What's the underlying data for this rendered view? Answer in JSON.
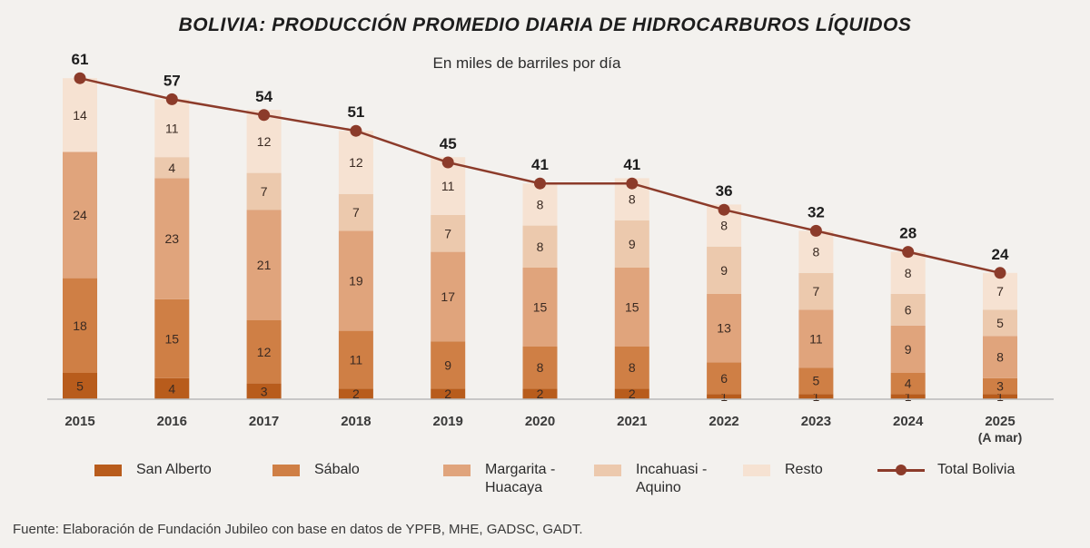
{
  "title": "BOLIVIA: PRODUCCIÓN PROMEDIO DIARIA DE HIDROCARBUROS LÍQUIDOS",
  "subtitle": "En miles de barriles por día",
  "source": "Fuente: Elaboración de Fundación Jubileo con base en datos de YPFB, MHE, GADSC, GADT.",
  "chart_data": {
    "type": "bar",
    "stacked": true,
    "categories": [
      "2015",
      "2016",
      "2017",
      "2018",
      "2019",
      "2020",
      "2021",
      "2022",
      "2023",
      "2024",
      "2025"
    ],
    "category_sublabels": [
      "",
      "",
      "",
      "",
      "",
      "",
      "",
      "",
      "",
      "",
      "(A mar)"
    ],
    "ylim": [
      0,
      64
    ],
    "grid": false,
    "legend_position": "bottom",
    "series": [
      {
        "name": "San Alberto",
        "color": "#b85c1c",
        "values": [
          5,
          4,
          3,
          2,
          2,
          2,
          2,
          1,
          1,
          1,
          1
        ]
      },
      {
        "name": "Sábalo",
        "color": "#cf7f45",
        "values": [
          18,
          15,
          12,
          11,
          9,
          8,
          8,
          6,
          5,
          4,
          3
        ]
      },
      {
        "name": "Margarita - Huacaya",
        "color": "#e0a47c",
        "values": [
          24,
          23,
          21,
          19,
          17,
          15,
          15,
          13,
          11,
          9,
          8
        ]
      },
      {
        "name": "Incahuasi - Aquino",
        "color": "#ecc9ad",
        "values": [
          0,
          4,
          7,
          7,
          7,
          8,
          9,
          9,
          7,
          6,
          5
        ]
      },
      {
        "name": "Resto",
        "color": "#f6e2d2",
        "values": [
          14,
          11,
          12,
          12,
          11,
          8,
          8,
          8,
          8,
          8,
          7
        ]
      }
    ],
    "line_series": {
      "name": "Total Bolivia",
      "color": "#8c3b2a",
      "values": [
        61,
        57,
        54,
        51,
        45,
        41,
        41,
        36,
        32,
        28,
        24
      ]
    }
  }
}
